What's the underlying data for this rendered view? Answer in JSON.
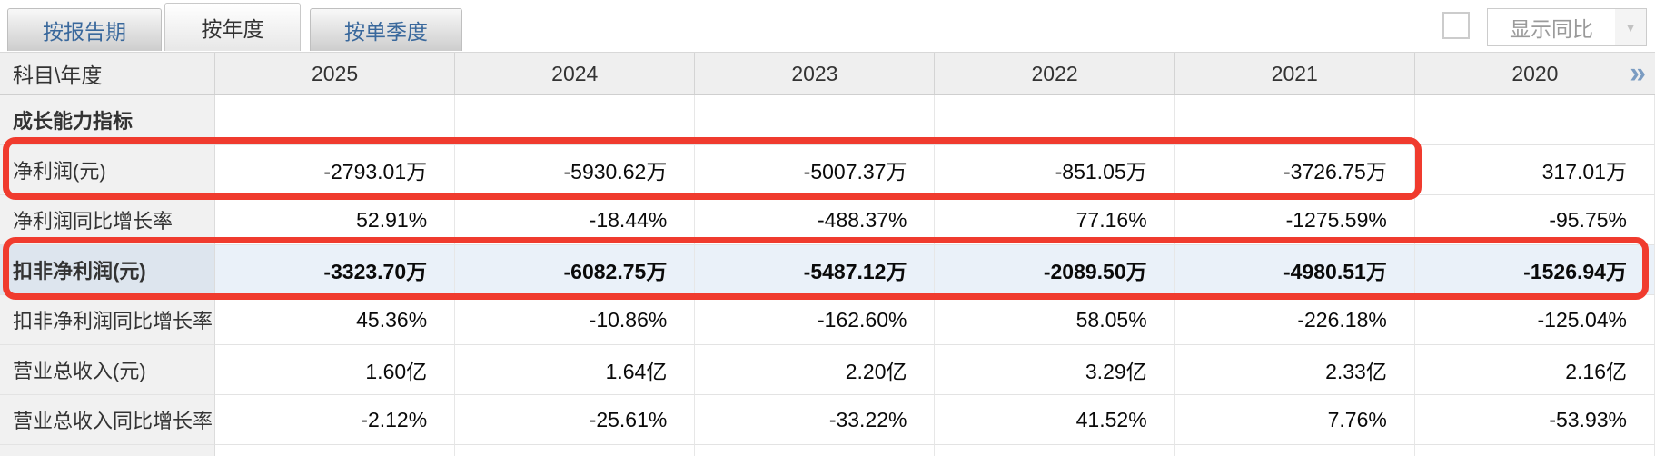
{
  "tabs": [
    {
      "label": "按报告期",
      "active": false
    },
    {
      "label": "按年度",
      "active": true
    },
    {
      "label": "按单季度",
      "active": false
    }
  ],
  "controls": {
    "show_yoy_label": "显示同比",
    "checkbox_checked": false,
    "caret_icon": "▼"
  },
  "table": {
    "corner_label": "科目\\年度",
    "years": [
      "2025",
      "2024",
      "2023",
      "2022",
      "2021",
      "2020"
    ],
    "more_icon": "»",
    "rows": [
      {
        "label": "成长能力指标",
        "type": "section-header",
        "values": [
          "",
          "",
          "",
          "",
          "",
          ""
        ]
      },
      {
        "label": "净利润(元)",
        "highlight": "red-box-through-2021",
        "values": [
          "-2793.01万",
          "-5930.62万",
          "-5007.37万",
          "-851.05万",
          "-3726.75万",
          "317.01万"
        ]
      },
      {
        "label": "净利润同比增长率",
        "values": [
          "52.91%",
          "-18.44%",
          "-488.37%",
          "77.16%",
          "-1275.59%",
          "-95.75%"
        ]
      },
      {
        "label": "扣非净利润(元)",
        "highlight": "red-box-full-width",
        "row_bg": "light-blue",
        "bold": true,
        "values": [
          "-3323.70万",
          "-6082.75万",
          "-5487.12万",
          "-2089.50万",
          "-4980.51万",
          "-1526.94万"
        ]
      },
      {
        "label": "扣非净利润同比增长率",
        "values": [
          "45.36%",
          "-10.86%",
          "-162.60%",
          "58.05%",
          "-226.18%",
          "-125.04%"
        ]
      },
      {
        "label": "营业总收入(元)",
        "values": [
          "1.60亿",
          "1.64亿",
          "2.20亿",
          "3.29亿",
          "2.33亿",
          "2.16亿"
        ]
      },
      {
        "label": "营业总收入同比增长率",
        "values": [
          "-2.12%",
          "-25.61%",
          "-33.22%",
          "41.52%",
          "7.76%",
          "-53.93%"
        ]
      }
    ]
  },
  "colors": {
    "highlight_border": "#f03b2e",
    "tab_text_blue": "#39689c",
    "header_bg": "#efefef",
    "label_cell_bg": "#f1f1f1",
    "blue_row_bg": "#eaf1f9",
    "blue_row_label_bg": "#dde5ee",
    "more_icon_blue": "#7b9cc2"
  }
}
